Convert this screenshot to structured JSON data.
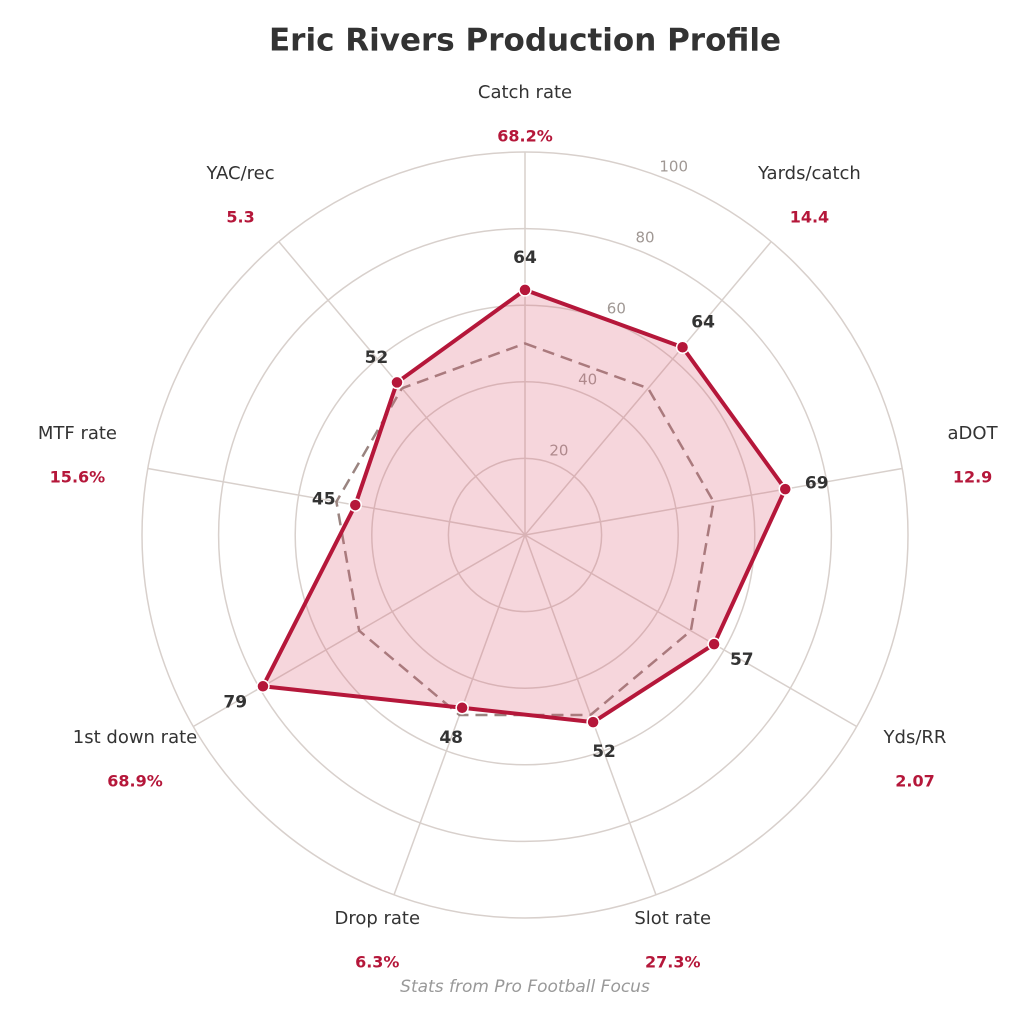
{
  "chart_data": {
    "type": "radar",
    "title": "Eric Rivers Production Profile",
    "footnote": "Stats from Pro Football Focus",
    "categories": [
      "Catch rate",
      "Yards/catch",
      "aDOT",
      "Yds/RR",
      "Slot rate",
      "Drop rate",
      "1st down rate",
      "MTF rate",
      "YAC/rec"
    ],
    "stat_labels": [
      "68.2%",
      "14.4",
      "12.9",
      "2.07",
      "27.3%",
      "6.3%",
      "68.9%",
      "15.6%",
      "5.3"
    ],
    "series": [
      {
        "color": "#b5173a",
        "values": [
          64,
          64,
          69,
          57,
          52,
          48,
          79,
          45,
          52
        ]
      },
      {
        "color": "#9a8480",
        "values": [
          50,
          50,
          50,
          50,
          50,
          50,
          50,
          50,
          50
        ],
        "dashed": true
      }
    ],
    "ylim": [
      0,
      100
    ],
    "yticks": [
      20,
      40,
      60,
      80,
      100
    ],
    "grid": true
  }
}
